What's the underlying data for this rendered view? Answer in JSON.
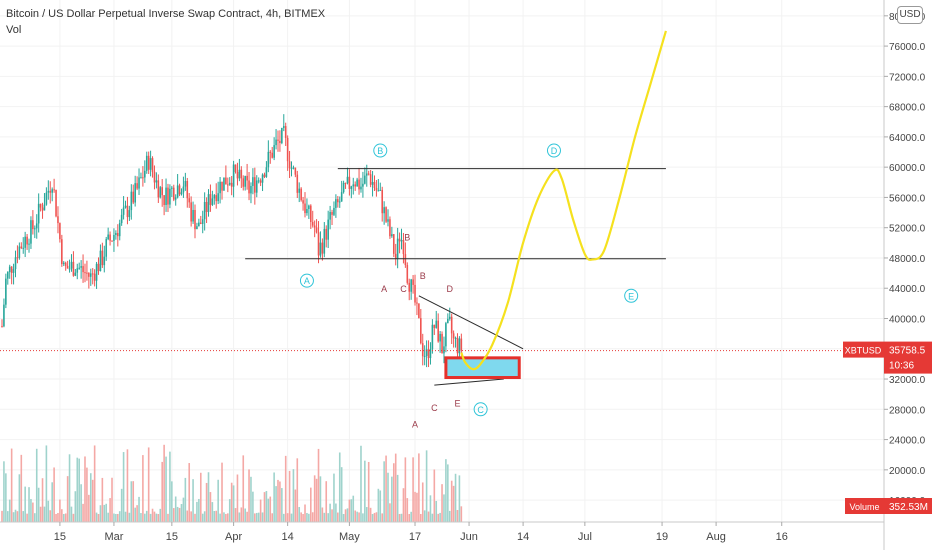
{
  "legend": {
    "title": "Bitcoin / US Dollar Perpetual Inverse Swap Contract, 4h, BITMEX",
    "volume_label": "Vol"
  },
  "currency_button": "USD",
  "price_tag": {
    "symbol": "XBTUSD",
    "price": "35758.5",
    "countdown": "10:36"
  },
  "volume_tag": {
    "label": "Volume",
    "value": "352.53M"
  },
  "colors": {
    "up": "#26a69a",
    "down": "#ef5350",
    "volume_up": "#9fd3cc",
    "volume_down": "#f4a8a5",
    "projection": "#f5e11e",
    "annotation": "#2fc4d8",
    "box_fill": "#7fd9ee",
    "box_border": "#e5302a",
    "price_line": "#e53935",
    "label_letter": "#9b3b4a",
    "trendline": "#2b2b2b"
  },
  "chart_data": {
    "type": "candlestick",
    "instrument": "XBTUSD",
    "timeframe": "4h",
    "ylim": [
      10000,
      82000
    ],
    "y_ticks": [
      "80000.0",
      "76000.0",
      "72000.0",
      "68000.0",
      "64000.0",
      "60000.0",
      "56000.0",
      "52000.0",
      "48000.0",
      "44000.0",
      "40000.0",
      "36000.0",
      "32000.0",
      "28000.0",
      "24000.0",
      "20000.0",
      "16000.0"
    ],
    "y_tick_values": [
      80000,
      76000,
      72000,
      68000,
      64000,
      60000,
      56000,
      52000,
      48000,
      44000,
      40000,
      36000,
      32000,
      28000,
      24000,
      20000,
      16000
    ],
    "x_tick_labels": [
      "15",
      "Mar",
      "15",
      "Apr",
      "14",
      "May",
      "17",
      "Jun",
      "14",
      "Jul",
      "19",
      "Aug",
      "16"
    ],
    "x_tick_days": [
      15,
      29,
      44,
      60,
      74,
      90,
      107,
      121,
      135,
      151,
      171,
      185,
      202
    ],
    "last_price": 35758.5,
    "price_path": [
      {
        "day": 0,
        "price": 39000
      },
      {
        "day": 1,
        "price": 45000
      },
      {
        "day": 4,
        "price": 49000
      },
      {
        "day": 8,
        "price": 52000
      },
      {
        "day": 12,
        "price": 57000
      },
      {
        "day": 13,
        "price": 58500
      },
      {
        "day": 16,
        "price": 46500
      },
      {
        "day": 19,
        "price": 47000
      },
      {
        "day": 23,
        "price": 45500
      },
      {
        "day": 26,
        "price": 48000
      },
      {
        "day": 27,
        "price": 49500
      },
      {
        "day": 30,
        "price": 52000
      },
      {
        "day": 32,
        "price": 54000
      },
      {
        "day": 35,
        "price": 57000
      },
      {
        "day": 38,
        "price": 61000
      },
      {
        "day": 40,
        "price": 58000
      },
      {
        "day": 42,
        "price": 56000
      },
      {
        "day": 44,
        "price": 57000
      },
      {
        "day": 47,
        "price": 58000
      },
      {
        "day": 49,
        "price": 54000
      },
      {
        "day": 51,
        "price": 52000
      },
      {
        "day": 54,
        "price": 56000
      },
      {
        "day": 57,
        "price": 58000
      },
      {
        "day": 60,
        "price": 59000
      },
      {
        "day": 62,
        "price": 58000
      },
      {
        "day": 64,
        "price": 57000
      },
      {
        "day": 67,
        "price": 59000
      },
      {
        "day": 69,
        "price": 61000
      },
      {
        "day": 71,
        "price": 63000
      },
      {
        "day": 73,
        "price": 64000
      },
      {
        "day": 75,
        "price": 60000
      },
      {
        "day": 77,
        "price": 57000
      },
      {
        "day": 79,
        "price": 54000
      },
      {
        "day": 81,
        "price": 52000
      },
      {
        "day": 82,
        "price": 49000
      },
      {
        "day": 83,
        "price": 50000
      },
      {
        "day": 85,
        "price": 53000
      },
      {
        "day": 87,
        "price": 55000
      },
      {
        "day": 89,
        "price": 57000
      },
      {
        "day": 91,
        "price": 58500
      },
      {
        "day": 93,
        "price": 57500
      },
      {
        "day": 95,
        "price": 59000
      },
      {
        "day": 96,
        "price": 58000
      },
      {
        "day": 98,
        "price": 56000
      },
      {
        "day": 100,
        "price": 52000
      },
      {
        "day": 101,
        "price": 50000
      },
      {
        "day": 102,
        "price": 48000
      },
      {
        "day": 103,
        "price": 51000
      },
      {
        "day": 104,
        "price": 50000
      },
      {
        "day": 105,
        "price": 46000
      },
      {
        "day": 106,
        "price": 44000
      },
      {
        "day": 107,
        "price": 42000
      },
      {
        "day": 108,
        "price": 39000
      },
      {
        "day": 109,
        "price": 36000
      },
      {
        "day": 110,
        "price": 35000
      },
      {
        "day": 111,
        "price": 37000
      },
      {
        "day": 112,
        "price": 39000
      },
      {
        "day": 113,
        "price": 38000
      },
      {
        "day": 114,
        "price": 36000
      },
      {
        "day": 115,
        "price": 38000
      },
      {
        "day": 116,
        "price": 39000
      },
      {
        "day": 117,
        "price": 37000
      },
      {
        "day": 118,
        "price": 36500
      },
      {
        "day": 119,
        "price": 35758.5
      }
    ],
    "projection_path": [
      {
        "day": 119,
        "price": 35500
      },
      {
        "day": 120,
        "price": 34200
      },
      {
        "day": 122,
        "price": 33300
      },
      {
        "day": 124,
        "price": 34000
      },
      {
        "day": 127,
        "price": 36500
      },
      {
        "day": 131,
        "price": 42000
      },
      {
        "day": 135,
        "price": 50000
      },
      {
        "day": 139,
        "price": 56000
      },
      {
        "day": 143,
        "price": 59500
      },
      {
        "day": 145,
        "price": 58500
      },
      {
        "day": 148,
        "price": 53000
      },
      {
        "day": 151,
        "price": 48500
      },
      {
        "day": 153,
        "price": 47800
      },
      {
        "day": 156,
        "price": 49000
      },
      {
        "day": 160,
        "price": 56000
      },
      {
        "day": 164,
        "price": 64000
      },
      {
        "day": 168,
        "price": 71000
      },
      {
        "day": 172,
        "price": 78000
      }
    ],
    "horizontal_lines": [
      {
        "day_start": 87,
        "day_end": 172,
        "price": 59800
      },
      {
        "day_start": 63,
        "day_end": 172,
        "price": 47900
      }
    ],
    "triangle_lines": [
      {
        "day_start": 108,
        "price_start": 43000,
        "day_end": 135,
        "price_end": 36000
      },
      {
        "day_start": 112,
        "price_start": 31200,
        "day_end": 130,
        "price_end": 32000
      }
    ],
    "target_box": {
      "day_start": 115,
      "day_end": 134,
      "price_top": 34800,
      "price_bottom": 32200
    },
    "circled_labels": [
      {
        "text": "A",
        "day": 79,
        "price": 45000
      },
      {
        "text": "B",
        "day": 98,
        "price": 62200
      },
      {
        "text": "C",
        "day": 124,
        "price": 28000
      },
      {
        "text": "D",
        "day": 143,
        "price": 62200
      },
      {
        "text": "E",
        "day": 163,
        "price": 43000
      }
    ],
    "wave_labels": [
      {
        "text": "B",
        "day": 105,
        "price": 50300
      },
      {
        "text": "A",
        "day": 99,
        "price": 43500
      },
      {
        "text": "C",
        "day": 104,
        "price": 43500
      },
      {
        "text": "B",
        "day": 109,
        "price": 45200
      },
      {
        "text": "D",
        "day": 116,
        "price": 43500
      },
      {
        "text": "C",
        "day": 112,
        "price": 27800
      },
      {
        "text": "E",
        "day": 118,
        "price": 28400
      },
      {
        "text": "A",
        "day": 107,
        "price": 25600
      }
    ]
  }
}
